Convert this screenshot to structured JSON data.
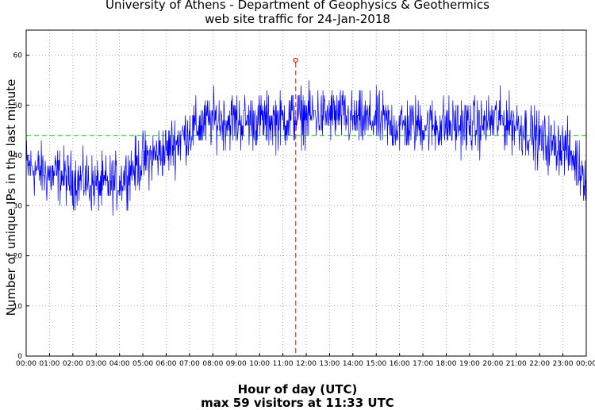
{
  "chart_data": {
    "type": "line",
    "title": "University of Athens - Department of Geophysics & Geothermics",
    "subtitle": "web site traffic for 24-Jan-2018",
    "xlabel": "Hour of day (UTC)",
    "ylabel": "Number of unique IPs in the last minute",
    "annotation": "max 59 visitors at 11:33 UTC",
    "x_tick_labels": [
      "00:00",
      "01:00",
      "02:00",
      "03:00",
      "04:00",
      "05:00",
      "06:00",
      "07:00",
      "08:00",
      "09:00",
      "10:00",
      "11:00",
      "12:00",
      "13:00",
      "14:00",
      "15:00",
      "16:00",
      "17:00",
      "18:00",
      "19:00",
      "20:00",
      "21:00",
      "22:00",
      "23:00",
      "00:00"
    ],
    "y_tick_labels": [
      "0",
      "10",
      "20",
      "30",
      "40",
      "50",
      "60"
    ],
    "xlim": [
      0,
      24
    ],
    "ylim": [
      0,
      65
    ],
    "grid": true,
    "series": [
      {
        "color": "#0000ff",
        "hour": [
          0,
          0.5,
          1,
          1.5,
          2,
          2.5,
          3,
          3.5,
          4,
          4.5,
          5,
          5.5,
          6,
          6.5,
          7,
          7.5,
          8,
          8.5,
          9,
          9.5,
          10,
          10.5,
          11,
          11.5,
          12,
          12.5,
          13,
          13.5,
          14,
          14.5,
          15,
          15.5,
          16,
          16.5,
          17,
          17.5,
          18,
          18.5,
          19,
          19.5,
          20,
          20.5,
          21,
          21.5,
          22,
          22.5,
          23,
          23.5,
          24
        ],
        "visitors": [
          38,
          37,
          36,
          36,
          35,
          35,
          34,
          34,
          35,
          37,
          39,
          40,
          41,
          43,
          45,
          46,
          47,
          47,
          47,
          47,
          47,
          47,
          47,
          48,
          48,
          48,
          48,
          48,
          47,
          47,
          47,
          46,
          46,
          46,
          46,
          46,
          46,
          46,
          46,
          46,
          47,
          47,
          46,
          45,
          43,
          42,
          42,
          39,
          36
        ]
      }
    ],
    "mean_line": {
      "value": 44,
      "color": "#00cc00"
    },
    "max_point": {
      "hour": 11.55,
      "value": 59,
      "color": "#ff0000"
    }
  }
}
